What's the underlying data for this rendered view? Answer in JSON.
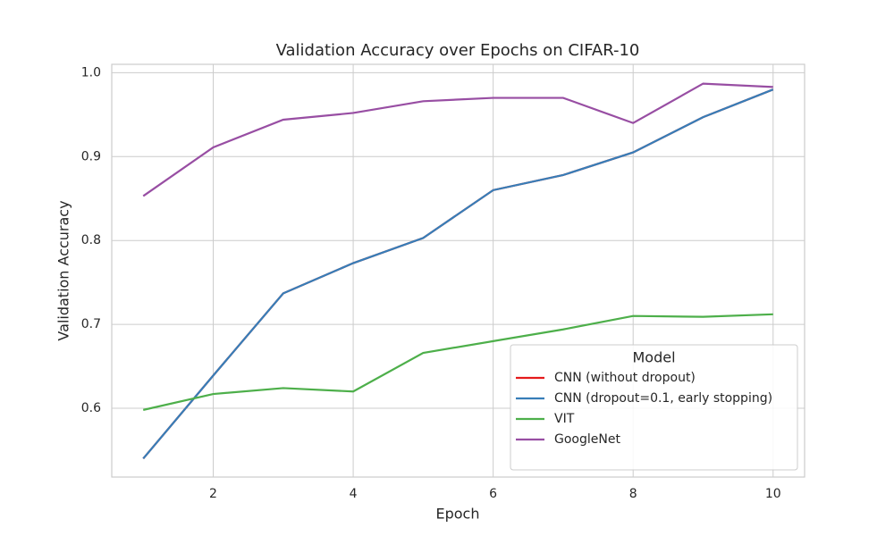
{
  "chart_data": {
    "type": "line",
    "title": "Validation Accuracy over Epochs on CIFAR-10",
    "xlabel": "Epoch",
    "ylabel": "Validation Accuracy",
    "x": [
      1,
      2,
      3,
      4,
      5,
      6,
      7,
      8,
      9,
      10
    ],
    "series": [
      {
        "name": "CNN (without dropout)",
        "color": "#e41a1c",
        "values": [
          0.54,
          0.639,
          0.737,
          0.773,
          0.803,
          0.86,
          0.878,
          0.905,
          0.947,
          0.98
        ]
      },
      {
        "name": "CNN (dropout=0.1, early stopping)",
        "color": "#377eb8",
        "values": [
          0.54,
          0.639,
          0.737,
          0.773,
          0.803,
          0.86,
          0.878,
          0.905,
          0.947,
          0.98
        ]
      },
      {
        "name": "VIT",
        "color": "#4daf4a",
        "values": [
          0.598,
          0.617,
          0.624,
          0.62,
          0.666,
          0.68,
          0.694,
          0.71,
          0.709,
          0.712
        ]
      },
      {
        "name": "GoogleNet",
        "color": "#984ea3",
        "values": [
          0.853,
          0.911,
          0.944,
          0.952,
          0.966,
          0.97,
          0.97,
          0.94,
          0.987,
          0.983
        ]
      }
    ],
    "xlim": [
      0.55,
      10.45
    ],
    "xticks": [
      2,
      4,
      6,
      8,
      10
    ],
    "ylim": [
      0.518,
      1.01
    ],
    "yticks": [
      0.6,
      0.7,
      0.8,
      0.9,
      {
        "value": 1,
        "label": "1.0"
      }
    ],
    "grid": true,
    "legend_title": "Model",
    "legend": "lower right"
  }
}
